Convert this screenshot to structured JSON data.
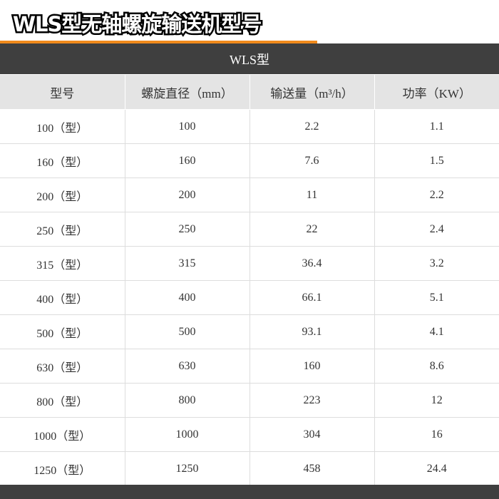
{
  "title": "WLS型无轴螺旋输送机型号",
  "colors": {
    "accent": "#f08a1c",
    "band": "#3f3f3f",
    "header_bg": "#e4e4e4"
  },
  "table": {
    "caption": "WLS型",
    "headers": [
      "型号",
      "螺旋直径（mm）",
      "输送量（m³/h）",
      "功率（KW）"
    ],
    "rows": [
      [
        "100（型）",
        "100",
        "2.2",
        "1.1"
      ],
      [
        "160（型）",
        "160",
        "7.6",
        "1.5"
      ],
      [
        "200（型）",
        "200",
        "11",
        "2.2"
      ],
      [
        "250（型）",
        "250",
        "22",
        "2.4"
      ],
      [
        "315（型）",
        "315",
        "36.4",
        "3.2"
      ],
      [
        "400（型）",
        "400",
        "66.1",
        "5.1"
      ],
      [
        "500（型）",
        "500",
        "93.1",
        "4.1"
      ],
      [
        "630（型）",
        "630",
        "160",
        "8.6"
      ],
      [
        "800（型）",
        "800",
        "223",
        "12"
      ],
      [
        "1000（型）",
        "1000",
        "304",
        "16"
      ],
      [
        "1250（型）",
        "1250",
        "458",
        "24.4"
      ]
    ]
  }
}
